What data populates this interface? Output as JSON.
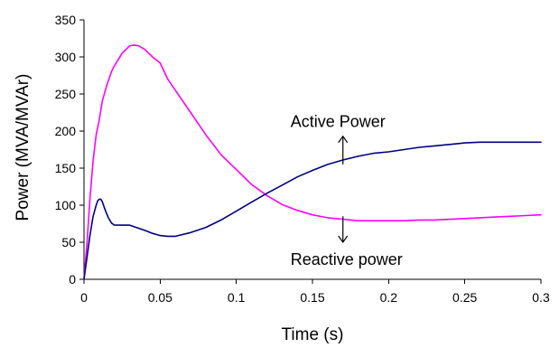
{
  "chart_data": {
    "type": "line",
    "title": "",
    "xlabel": "Time (s)",
    "ylabel": "Power (MVA/MVAr)",
    "xlim": [
      0,
      0.3
    ],
    "ylim": [
      0,
      350
    ],
    "x_ticks": [
      0,
      0.05,
      0.1,
      0.15,
      0.2,
      0.25,
      0.3
    ],
    "x_tick_labels": [
      "0",
      "0.05",
      "0.1",
      "0.15",
      "0.2",
      "0.25",
      "0.3"
    ],
    "y_ticks": [
      0,
      50,
      100,
      150,
      200,
      250,
      300,
      350
    ],
    "y_tick_labels": [
      "0",
      "50",
      "100",
      "150",
      "200",
      "250",
      "300",
      "350"
    ],
    "grid": false,
    "legend": "none",
    "series": [
      {
        "color": "#ff00ff",
        "x": [
          0,
          0.002,
          0.004,
          0.006,
          0.008,
          0.01,
          0.012,
          0.015,
          0.018,
          0.02,
          0.025,
          0.03,
          0.033,
          0.036,
          0.04,
          0.045,
          0.05,
          0.055,
          0.06,
          0.07,
          0.08,
          0.09,
          0.1,
          0.11,
          0.12,
          0.13,
          0.14,
          0.15,
          0.16,
          0.17,
          0.18,
          0.19,
          0.2,
          0.21,
          0.22,
          0.23,
          0.24,
          0.25,
          0.26,
          0.27,
          0.28,
          0.29,
          0.3
        ],
        "values": [
          0,
          50,
          110,
          160,
          195,
          215,
          240,
          262,
          280,
          288,
          305,
          315,
          316,
          315,
          310,
          300,
          292,
          270,
          255,
          225,
          195,
          168,
          148,
          128,
          113,
          101,
          93,
          87,
          83,
          81,
          79,
          79,
          79,
          79,
          80,
          80,
          81,
          82,
          83,
          84,
          85,
          86,
          87
        ]
      },
      {
        "color": "#000080",
        "x": [
          0,
          0.002,
          0.004,
          0.006,
          0.008,
          0.009,
          0.01,
          0.011,
          0.012,
          0.014,
          0.016,
          0.018,
          0.02,
          0.025,
          0.03,
          0.04,
          0.045,
          0.05,
          0.055,
          0.06,
          0.07,
          0.08,
          0.09,
          0.1,
          0.11,
          0.12,
          0.13,
          0.14,
          0.15,
          0.16,
          0.17,
          0.18,
          0.19,
          0.2,
          0.21,
          0.22,
          0.23,
          0.24,
          0.25,
          0.26,
          0.27,
          0.28,
          0.29,
          0.3
        ],
        "values": [
          0,
          30,
          60,
          85,
          100,
          106,
          108,
          108,
          105,
          93,
          83,
          76,
          73,
          73,
          73,
          66,
          62,
          59,
          58,
          58,
          63,
          70,
          80,
          92,
          104,
          116,
          127,
          138,
          147,
          155,
          161,
          166,
          170,
          172,
          175,
          178,
          180,
          182,
          184,
          185,
          185,
          185,
          185,
          185
        ]
      }
    ],
    "annotations": [
      {
        "text": "Active Power",
        "arrow_x": 0.17,
        "arrow_from_y": 155,
        "arrow_to_y": 193,
        "arrow_direction": "up"
      },
      {
        "text": "Reactive power",
        "arrow_x": 0.17,
        "arrow_from_y": 85,
        "arrow_to_y": 50,
        "arrow_direction": "down"
      }
    ]
  }
}
